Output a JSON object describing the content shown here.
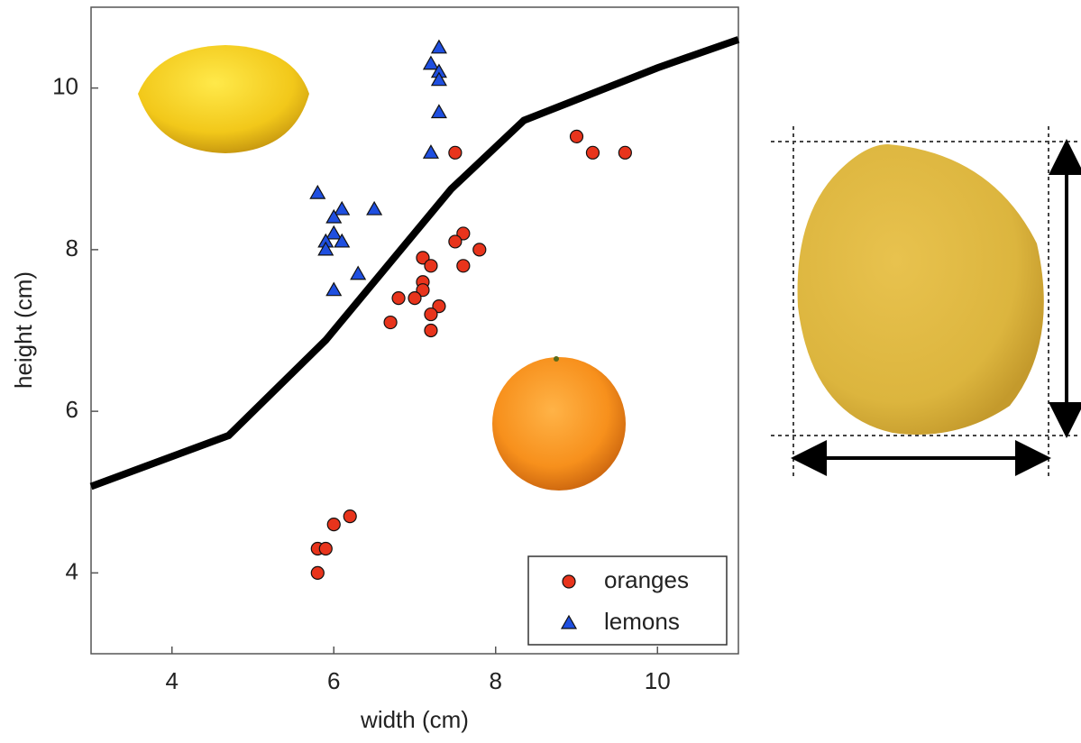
{
  "chart_data": {
    "type": "scatter",
    "xlabel": "width (cm)",
    "ylabel": "height (cm)",
    "xlim": [
      3,
      11
    ],
    "ylim": [
      3,
      11
    ],
    "xticks": [
      4,
      6,
      8,
      10
    ],
    "yticks": [
      4,
      6,
      8,
      10
    ],
    "grid": false,
    "legend": "lower right",
    "series": [
      {
        "name": "oranges",
        "color": "#e8341c",
        "marker": "circle",
        "x": [
          7.5,
          9.0,
          9.2,
          9.6,
          7.6,
          7.5,
          7.8,
          7.6,
          7.1,
          7.2,
          7.1,
          7.1,
          6.8,
          7.0,
          7.3,
          7.2,
          6.7,
          7.2,
          6.2,
          6.0,
          5.8,
          5.9,
          5.8
        ],
        "y": [
          9.2,
          9.4,
          9.2,
          9.2,
          8.2,
          8.1,
          8.0,
          7.8,
          7.9,
          7.8,
          7.6,
          7.5,
          7.4,
          7.4,
          7.3,
          7.2,
          7.1,
          7.0,
          4.7,
          4.6,
          4.3,
          4.3,
          4.0
        ]
      },
      {
        "name": "lemons",
        "color": "#1f4fe0",
        "marker": "triangle",
        "x": [
          7.3,
          7.2,
          7.3,
          7.3,
          7.3,
          7.2,
          5.8,
          6.1,
          6.5,
          6.0,
          6.0,
          5.9,
          6.1,
          5.9,
          6.3,
          6.0
        ],
        "y": [
          10.5,
          10.3,
          10.2,
          10.1,
          9.7,
          9.2,
          8.7,
          8.5,
          8.5,
          8.4,
          8.2,
          8.1,
          8.1,
          8.0,
          7.7,
          7.5
        ]
      }
    ],
    "boundary": {
      "color": "#000000",
      "x": [
        3,
        4.7,
        5.9,
        7.45,
        8.35,
        10,
        11
      ],
      "y": [
        5.07,
        5.7,
        6.88,
        8.75,
        9.6,
        10.25,
        10.6
      ]
    }
  }
}
